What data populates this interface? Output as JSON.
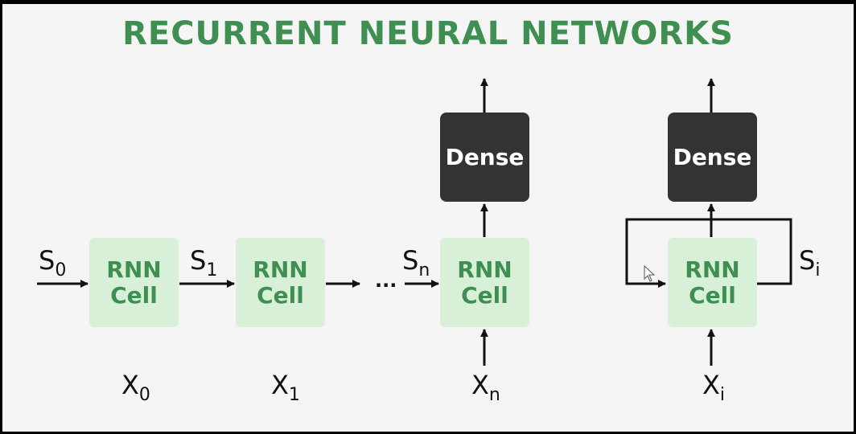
{
  "title": "RECURRENT NEURAL NETWORKS",
  "cells": [
    {
      "line1": "RNN",
      "line2": "Cell"
    },
    {
      "line1": "RNN",
      "line2": "Cell"
    },
    {
      "line1": "RNN",
      "line2": "Cell"
    },
    {
      "line1": "RNN",
      "line2": "Cell"
    }
  ],
  "dense": [
    {
      "label": "Dense"
    },
    {
      "label": "Dense"
    }
  ],
  "states": [
    {
      "base": "S",
      "sub": "0"
    },
    {
      "base": "S",
      "sub": "1"
    },
    {
      "base": "S",
      "sub": "n"
    },
    {
      "base": "S",
      "sub": "i"
    }
  ],
  "inputs": [
    {
      "base": "X",
      "sub": "0"
    },
    {
      "base": "X",
      "sub": "1"
    },
    {
      "base": "X",
      "sub": "n"
    },
    {
      "base": "X",
      "sub": "i"
    }
  ],
  "ellipsis": "...",
  "colors": {
    "title": "#3f8f52",
    "cell_fill": "#d9f0d8",
    "cell_text": "#3f8f52",
    "dense_fill": "#333333",
    "dense_text": "#ffffff",
    "line": "#111111"
  }
}
